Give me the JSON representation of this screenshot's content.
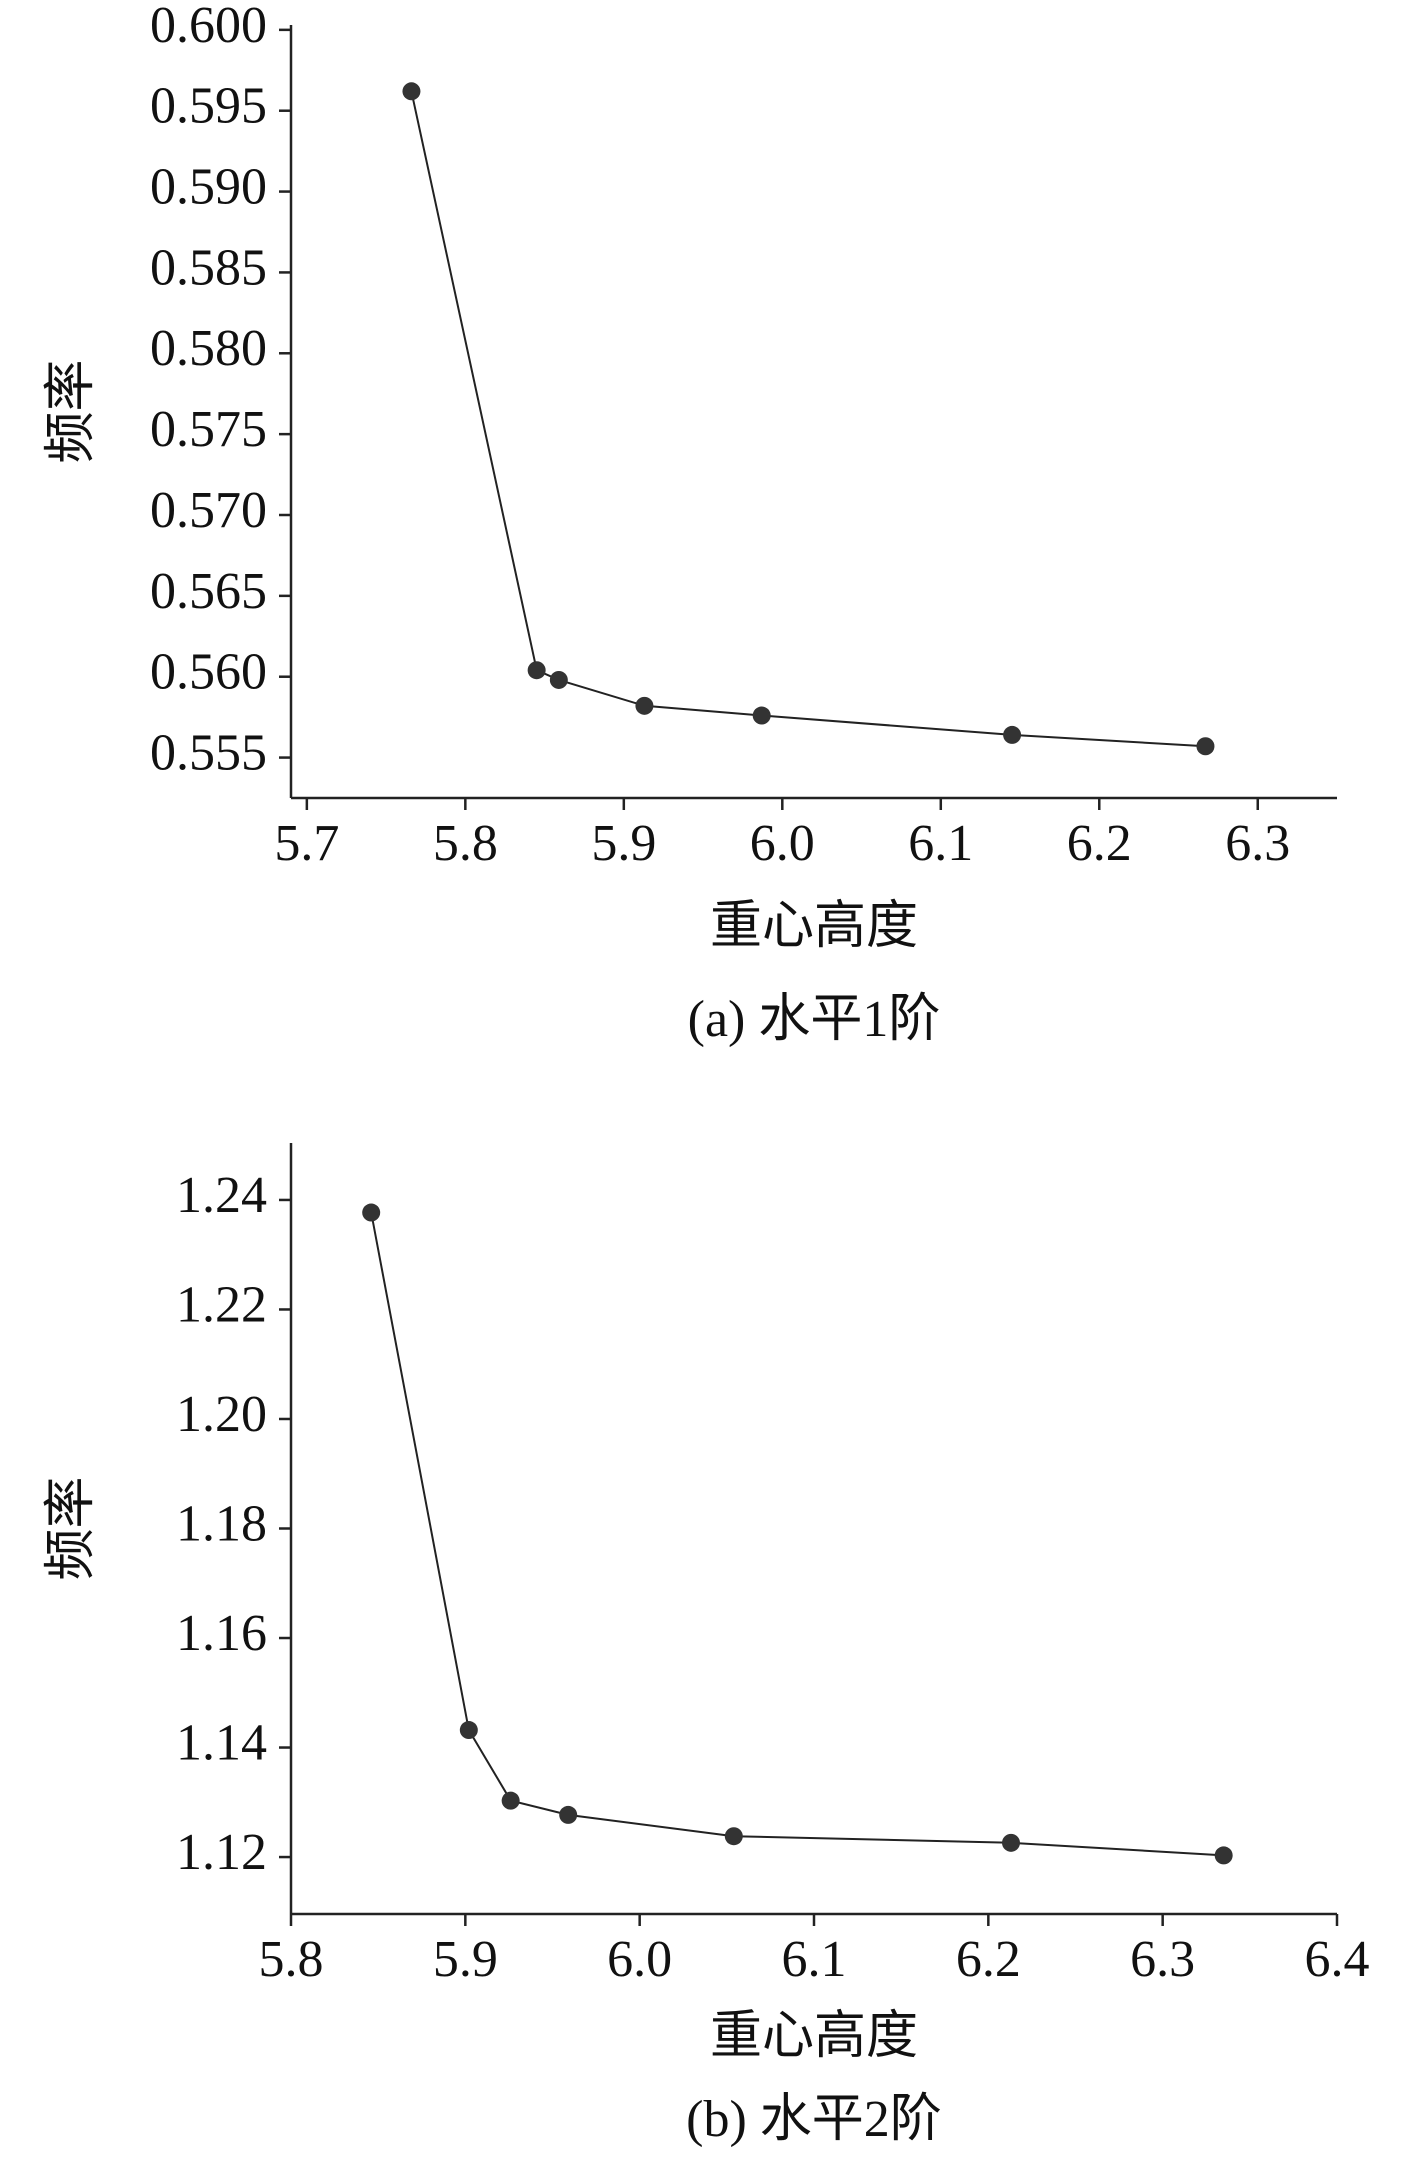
{
  "chart_data": [
    {
      "type": "line",
      "x_label": "重心高度",
      "y_label": "频率",
      "caption": "(a) 水平1阶",
      "x": [
        5.766,
        5.845,
        5.859,
        5.913,
        5.987,
        6.145,
        6.267
      ],
      "values": [
        0.5962,
        0.5604,
        0.5598,
        0.5582,
        0.5576,
        0.5564,
        0.5557
      ],
      "color": "#333333",
      "xlim": [
        5.69,
        6.35
      ],
      "ylim": [
        0.5525,
        0.6003
      ],
      "xticks": [
        5.7,
        5.8,
        5.9,
        {
          "value": 6,
          "label": "6.0"
        },
        6.1,
        6.2,
        6.3
      ],
      "yticks": [
        0.555,
        {
          "value": 0.56,
          "label": "0.560"
        },
        0.565,
        {
          "value": 0.57,
          "label": "0.570"
        },
        0.575,
        {
          "value": 0.58,
          "label": "0.580"
        },
        0.585,
        {
          "value": 0.59,
          "label": "0.590"
        },
        0.595,
        {
          "value": 0.6,
          "label": "0.600"
        }
      ]
    },
    {
      "type": "line",
      "x_label": "重心高度",
      "y_label": "频率",
      "caption": "(b) 水平2阶",
      "x": [
        5.846,
        5.902,
        5.926,
        5.959,
        6.054,
        6.213,
        6.335
      ],
      "values": [
        1.2377,
        1.1432,
        1.1303,
        1.1277,
        1.1238,
        1.1226,
        1.1203
      ],
      "color": "#333333",
      "xlim": [
        5.8,
        6.4
      ],
      "ylim": [
        1.1096,
        1.2504
      ],
      "xticks": [
        5.8,
        5.9,
        {
          "value": 6,
          "label": "6.0"
        },
        6.1,
        6.2,
        6.3,
        6.4
      ],
      "yticks": [
        1.12,
        1.14,
        1.16,
        1.18,
        {
          "value": 1.2,
          "label": "1.20"
        },
        1.22,
        1.24
      ]
    }
  ]
}
